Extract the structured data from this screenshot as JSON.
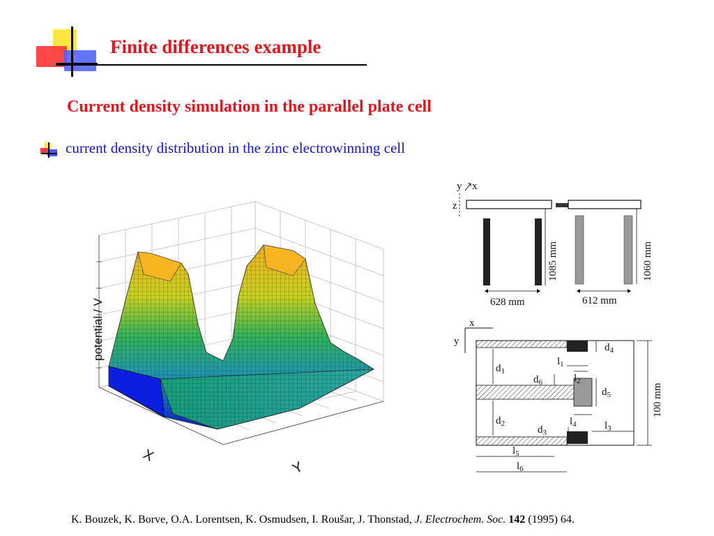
{
  "slide": {
    "title": "Finite differences example",
    "subtitle": "Current density simulation in the parallel plate cell",
    "bullet": "current density distribution in the zinc electrowinning cell"
  },
  "plot": {
    "z_label": "potential / V",
    "x_label": "X",
    "y_label": "Y"
  },
  "diagram_top": {
    "axis_y": "y",
    "axis_x": "x",
    "axis_z": "z",
    "width_left": "628 mm",
    "width_right": "612 mm",
    "height_left": "1085 mm",
    "height_right": "1060 mm"
  },
  "diagram_bottom": {
    "axis_x": "x",
    "axis_y": "y",
    "d1": "d",
    "d1_sub": "1",
    "d2": "d",
    "d2_sub": "2",
    "d3": "d",
    "d3_sub": "3",
    "d4": "d",
    "d4_sub": "4",
    "d5": "d",
    "d5_sub": "5",
    "d6": "d",
    "d6_sub": "6",
    "l1": "l",
    "l1_sub": "1",
    "l2": "l",
    "l2_sub": "2",
    "l3": "l",
    "l3_sub": "3",
    "l4": "l",
    "l4_sub": "4",
    "l5": "l",
    "l5_sub": "5",
    "l6": "l",
    "l6_sub": "6",
    "height": "100 mm"
  },
  "citation": {
    "authors": "K. Bouzek, K. Borve, O.A. Lorentsen, K. Osmudsen, I. Roušar, J. Thonstad,",
    "journal": "J. Electrochem. Soc.",
    "volume": "142",
    "rest": "(1995) 64."
  },
  "colors": {
    "title": "#e4141c",
    "bullet_text": "#1216c9"
  }
}
